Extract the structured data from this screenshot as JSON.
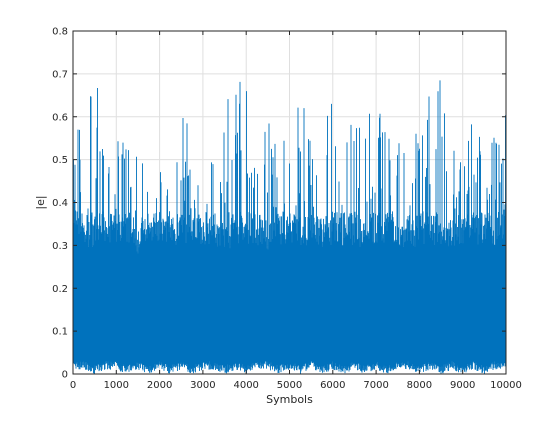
{
  "chart_data": {
    "type": "line",
    "xlabel": "Symbols",
    "ylabel": "|e|",
    "xlim": [
      0,
      10000
    ],
    "ylim": [
      0,
      0.8
    ],
    "grid": true,
    "x_ticks": [
      0,
      1000,
      2000,
      3000,
      4000,
      5000,
      6000,
      7000,
      8000,
      9000,
      10000
    ],
    "y_ticks": [
      0,
      0.1,
      0.2,
      0.3,
      0.4,
      0.5,
      0.6,
      0.7,
      0.8
    ],
    "series": [
      {
        "color": "#0072bd",
        "n_points": 10000,
        "envelope_x": [
          0,
          250,
          500,
          750,
          1000,
          1250,
          1500,
          1750,
          2000,
          2250,
          2500,
          2750,
          3000,
          3250,
          3500,
          3750,
          4000,
          4250,
          4500,
          4750,
          5000,
          5250,
          5500,
          5750,
          6000,
          6250,
          6500,
          6750,
          7000,
          7250,
          7500,
          7750,
          8000,
          8250,
          8500,
          8750,
          9000,
          9250,
          9500,
          9750,
          10000
        ],
        "envelope_max": [
          0.56,
          0.62,
          0.72,
          0.54,
          0.66,
          0.62,
          0.54,
          0.5,
          0.5,
          0.46,
          0.58,
          0.76,
          0.54,
          0.62,
          0.6,
          0.78,
          0.7,
          0.58,
          0.6,
          0.55,
          0.55,
          0.66,
          0.58,
          0.62,
          0.68,
          0.58,
          0.66,
          0.66,
          0.72,
          0.6,
          0.64,
          0.52,
          0.58,
          0.66,
          0.74,
          0.6,
          0.62,
          0.64,
          0.54,
          0.58,
          0.62
        ],
        "envelope_min": [
          0.01,
          0.01,
          0.0,
          0.01,
          0.01,
          0.0,
          0.01,
          0.0,
          0.01,
          0.0,
          0.01,
          0.0,
          0.01,
          0.01,
          0.0,
          0.01,
          0.0,
          0.01,
          0.01,
          0.0,
          0.01,
          0.0,
          0.01,
          0.0,
          0.01,
          0.0,
          0.01,
          0.0,
          0.01,
          0.0,
          0.01,
          0.01,
          0.0,
          0.01,
          0.0,
          0.01,
          0.0,
          0.01,
          0.0,
          0.01,
          0.01
        ],
        "lower_band_max": [
          0.31,
          0.3,
          0.29,
          0.31,
          0.3,
          0.3,
          0.28,
          0.3,
          0.31,
          0.3,
          0.3,
          0.31,
          0.3,
          0.3,
          0.28,
          0.3,
          0.3,
          0.3,
          0.29,
          0.3,
          0.3,
          0.3,
          0.3,
          0.29,
          0.3,
          0.3,
          0.3,
          0.29,
          0.3,
          0.3,
          0.3,
          0.29,
          0.3,
          0.3,
          0.3,
          0.29,
          0.3,
          0.3,
          0.3,
          0.3,
          0.32
        ]
      }
    ]
  }
}
